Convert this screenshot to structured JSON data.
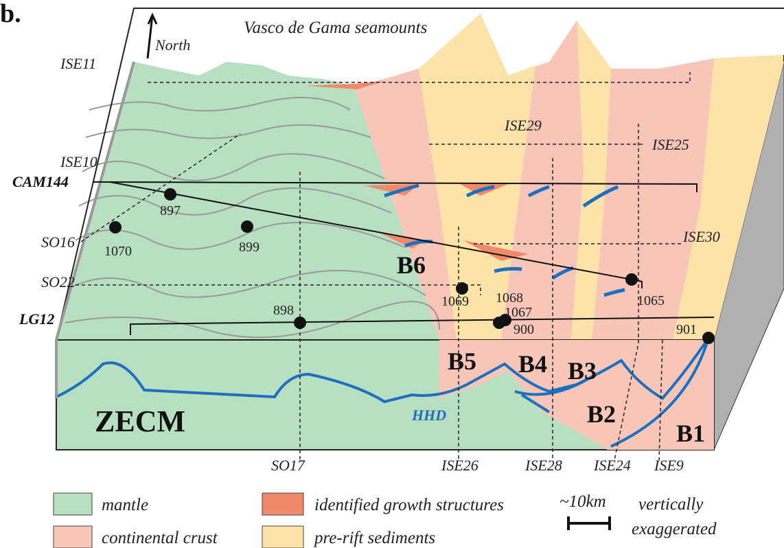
{
  "panel_label": "b.",
  "title": "Vasco de Gama seamounts",
  "north_label": "North",
  "profiles": {
    "left": [
      "ISE11",
      "ISE10",
      "CAM144",
      "SO16",
      "SO22",
      "LG12"
    ],
    "top": [
      "ISE29",
      "ISE25",
      "ISE30"
    ],
    "bottom": [
      "SO17",
      "ISE26",
      "ISE28",
      "ISE24",
      "ISE9"
    ]
  },
  "wells": [
    "897",
    "1070",
    "899",
    "898",
    "1069",
    "1068",
    "1067",
    "900",
    "1065",
    "901"
  ],
  "blocks": [
    "B6",
    "B5",
    "B4",
    "B3",
    "B2",
    "B1"
  ],
  "zone_label": "ZECM",
  "boundary_label": "HHD",
  "legend": {
    "items": [
      "mantle",
      "continental crust",
      "identified growth structures",
      "pre-rift sediments"
    ],
    "scale": "~10km",
    "note": [
      "vertically",
      "exaggerated"
    ]
  }
}
